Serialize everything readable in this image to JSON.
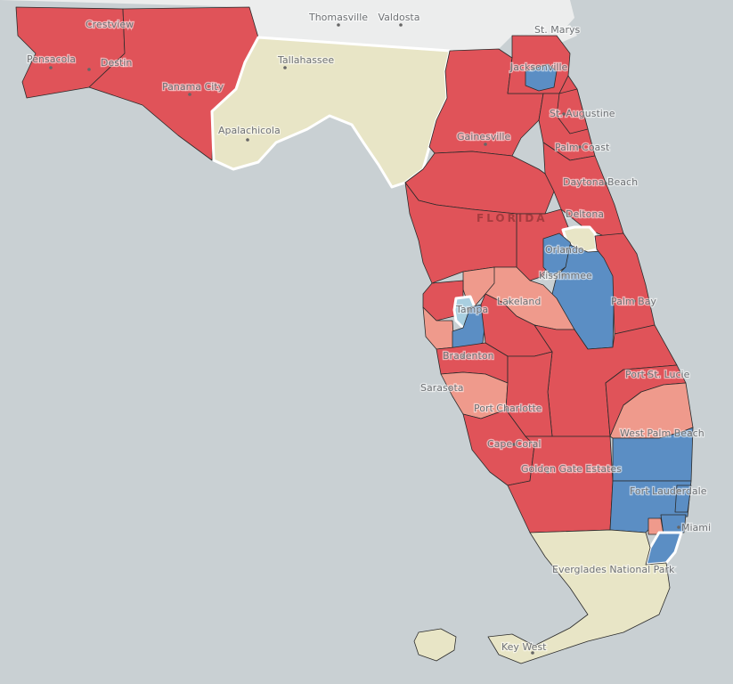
{
  "colors": {
    "water": "#c9d0d3",
    "land": "#eceded",
    "strong_republican": "#e05359",
    "lean_republican": "#ef9a8c",
    "strong_democrat": "#5b8ec4",
    "lean_democrat": "#a9cfe0",
    "tossup": "#e8e5c6"
  },
  "labels": {
    "thomasville": "Thomasville",
    "valdosta": "Valdosta",
    "st_marys": "St. Marys",
    "crestview": "Crestview",
    "pensacola": "Pensacola",
    "destin": "Destin",
    "panama_city": "Panama City",
    "tallahassee": "Tallahassee",
    "apalachicola": "Apalachicola",
    "jacksonville": "Jacksonville",
    "st_augustine": "St. Augustine",
    "gainesville": "Gainesville",
    "palm_coast": "Palm Coast",
    "daytona_beach": "Daytona Beach",
    "deltona": "Deltona",
    "florida": "FLORIDA",
    "orlando": "Orlando",
    "kissimmee": "Kissimmee",
    "lakeland": "Lakeland",
    "tampa": "Tampa",
    "palm_bay": "Palm Bay",
    "bradenton": "Bradenton",
    "sarasota": "Sarasota",
    "port_st_lucie": "Port St. Lucie",
    "port_charlotte": "Port Charlotte",
    "west_palm_beach": "West Palm Beach",
    "cape_coral": "Cape Coral",
    "golden_gate_estates": "Golden Gate Estates",
    "fort_lauderdale": "Fort Lauderdale",
    "miami": "Miami",
    "everglades": "Everglades National Park",
    "key_west": "Key West"
  }
}
